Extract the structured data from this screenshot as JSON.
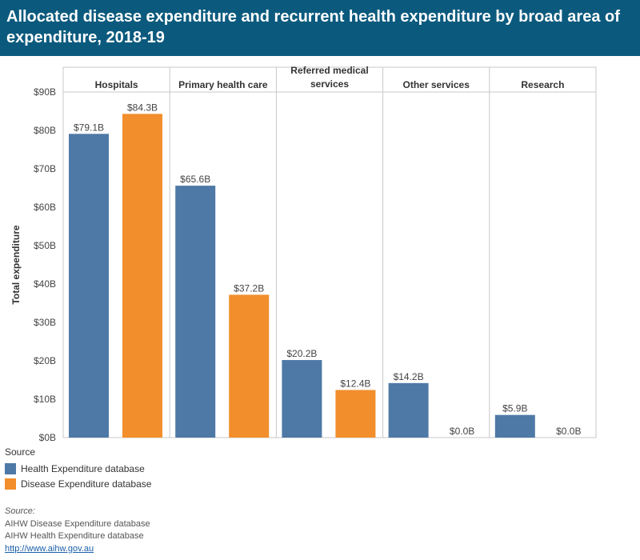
{
  "header": {
    "title": "Allocated disease expenditure and recurrent health expenditure by broad area of expenditure, 2018-19"
  },
  "chart_data": {
    "type": "bar",
    "ylabel": "Total expenditure",
    "ylim": [
      0,
      90
    ],
    "y_ticks": [
      0,
      10,
      20,
      30,
      40,
      50,
      60,
      70,
      80,
      90
    ],
    "y_tick_labels": [
      "$0B",
      "$10B",
      "$20B",
      "$30B",
      "$40B",
      "$50B",
      "$60B",
      "$70B",
      "$80B",
      "$90B"
    ],
    "grid": false,
    "legend_placement": "bottom-left",
    "categories": [
      "Hospitals",
      "Primary health care",
      "Referred medical services",
      "Other services",
      "Research"
    ],
    "series": [
      {
        "name": "Health Expenditure database",
        "color": "#4e79a7",
        "values": [
          79.1,
          65.6,
          20.2,
          14.2,
          5.9
        ],
        "labels": [
          "$79.1B",
          "$65.6B",
          "$20.2B",
          "$14.2B",
          "$5.9B"
        ]
      },
      {
        "name": "Disease Expenditure database",
        "color": "#f28e2b",
        "values": [
          84.3,
          37.2,
          12.4,
          0.0,
          0.0
        ],
        "labels": [
          "$84.3B",
          "$37.2B",
          "$12.4B",
          "$0.0B",
          "$0.0B"
        ]
      }
    ]
  },
  "legend": {
    "title": "Source",
    "items": [
      {
        "label": "Health Expenditure database",
        "color": "#4e79a7"
      },
      {
        "label": "Disease Expenditure database",
        "color": "#f28e2b"
      }
    ]
  },
  "source": {
    "label": "Source:",
    "lines": [
      "AIHW Disease Expenditure database",
      "AIHW Health Expenditure database"
    ],
    "link": "http://www.aihw.gov.au"
  }
}
